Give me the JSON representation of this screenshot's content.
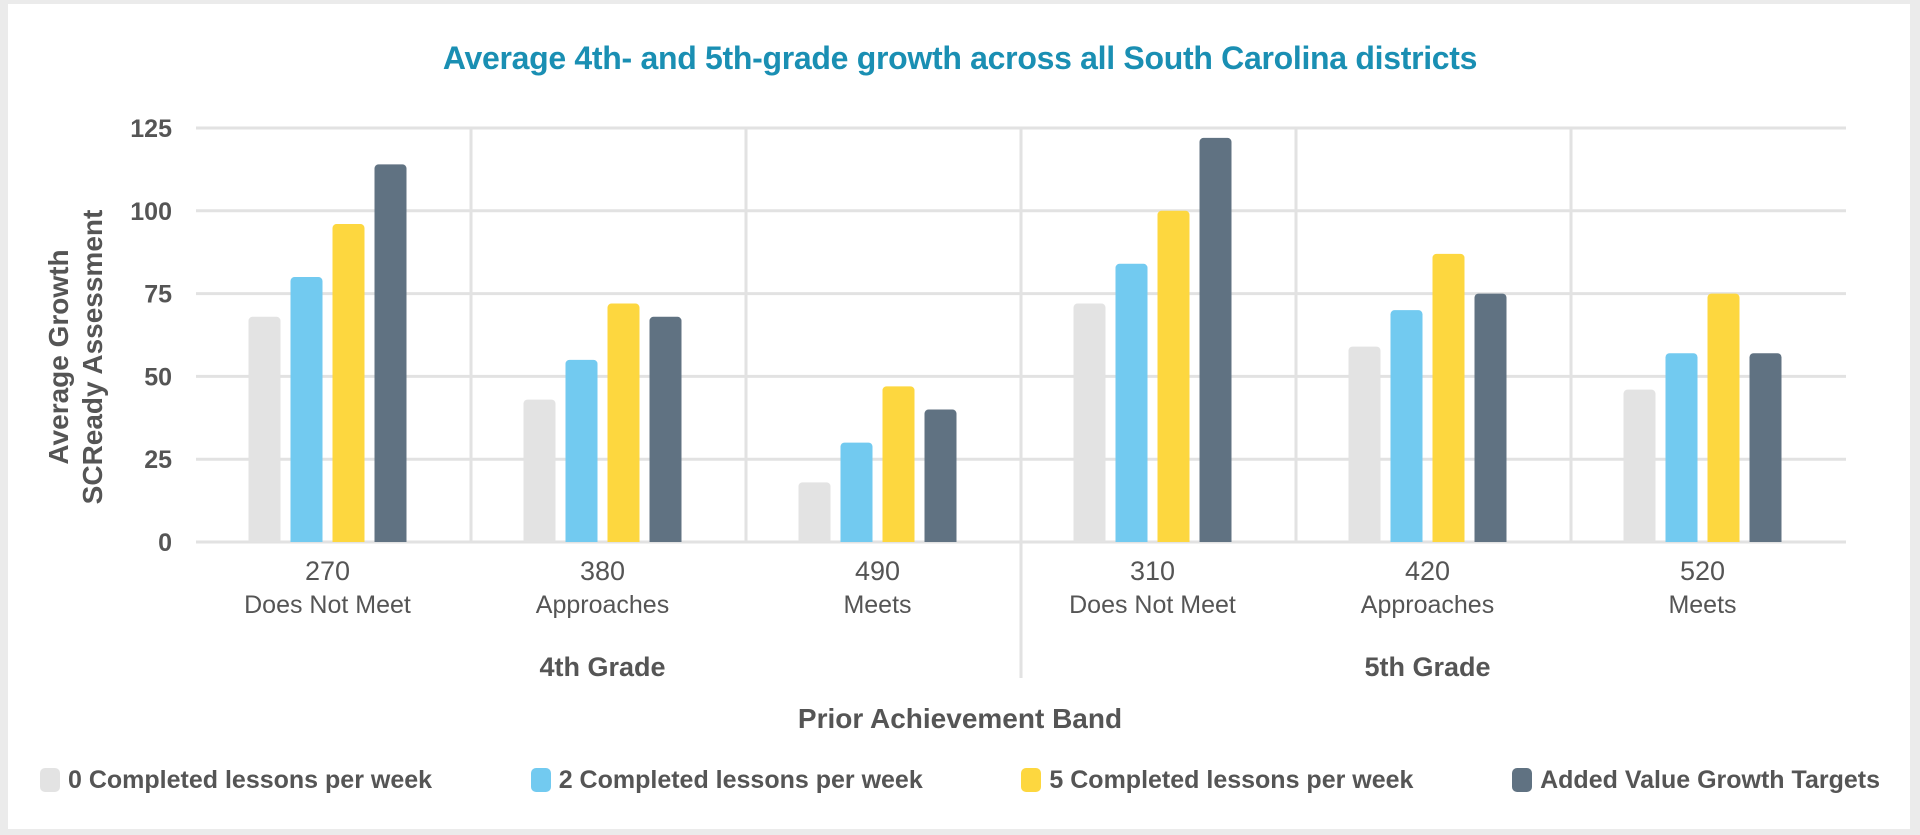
{
  "chart_data": {
    "type": "bar",
    "title": "Average 4th- and 5th-grade growth across all South Carolina districts",
    "xlabel": "Prior Achievement Band",
    "ylabel": [
      "Average Growth",
      "SCReady Assessment"
    ],
    "ylim": [
      0,
      125
    ],
    "yticks": [
      0,
      25,
      50,
      75,
      100,
      125
    ],
    "grid": true,
    "legend_position": "bottom",
    "groups": [
      {
        "label": "4th Grade",
        "categories": [
          {
            "score": "270",
            "band": "Does Not Meet"
          },
          {
            "score": "380",
            "band": "Approaches"
          },
          {
            "score": "490",
            "band": "Meets"
          }
        ]
      },
      {
        "label": "5th Grade",
        "categories": [
          {
            "score": "310",
            "band": "Does Not Meet"
          },
          {
            "score": "420",
            "band": "Approaches"
          },
          {
            "score": "520",
            "band": "Meets"
          }
        ]
      }
    ],
    "categories": [
      "270 Does Not Meet",
      "380 Approaches",
      "490 Meets",
      "310 Does Not Meet",
      "420 Approaches",
      "520 Meets"
    ],
    "series": [
      {
        "name": "0 Completed lessons per week",
        "color": "#e3e3e3",
        "values": [
          68,
          43,
          18,
          72,
          59,
          46
        ]
      },
      {
        "name": "2 Completed lessons per week",
        "color": "#72caf0",
        "values": [
          80,
          55,
          30,
          84,
          70,
          57
        ]
      },
      {
        "name": "5 Completed lessons per week",
        "color": "#fdd73f",
        "values": [
          96,
          72,
          47,
          100,
          87,
          75
        ]
      },
      {
        "name": "Added Value Growth Targets",
        "color": "#607282",
        "values": [
          114,
          68,
          40,
          122,
          75,
          57
        ]
      }
    ]
  },
  "colors": {
    "title": "#1a8fb3",
    "text": "#555555",
    "grid": "#e2e2e2"
  }
}
